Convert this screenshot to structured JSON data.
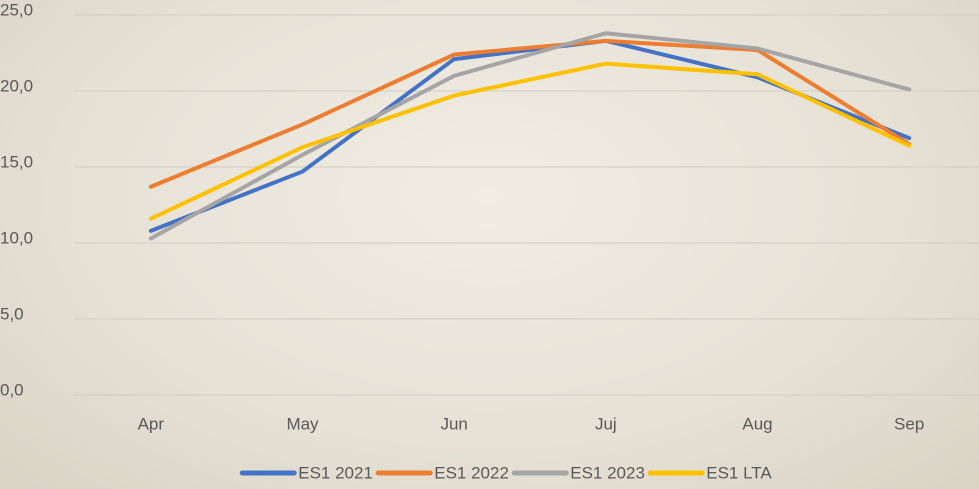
{
  "chart_data": {
    "type": "line",
    "categories": [
      "Apr",
      "May",
      "Jun",
      "Juj",
      "Aug",
      "Sep"
    ],
    "series": [
      {
        "name": "ES1 2021",
        "color": "#4472c4",
        "values": [
          10.8,
          14.7,
          22.1,
          23.3,
          20.9,
          16.9
        ]
      },
      {
        "name": "ES1 2022",
        "color": "#ed7d31",
        "values": [
          13.7,
          17.8,
          22.4,
          23.3,
          22.7,
          16.5
        ]
      },
      {
        "name": "ES1 2023",
        "color": "#a5a5a5",
        "values": [
          10.3,
          15.8,
          21.0,
          23.8,
          22.8,
          20.1
        ]
      },
      {
        "name": "ES1 LTA",
        "color": "#ffc000",
        "values": [
          11.6,
          16.3,
          19.7,
          21.8,
          21.1,
          16.4
        ]
      }
    ],
    "ylim": [
      0,
      25
    ],
    "yticks": [
      {
        "value": 0,
        "label": "0,0"
      },
      {
        "value": 5,
        "label": "5,0"
      },
      {
        "value": 10,
        "label": "10,0"
      },
      {
        "value": 15,
        "label": "15,0"
      },
      {
        "value": 20,
        "label": "20,0"
      },
      {
        "value": 25,
        "label": "25,0"
      }
    ],
    "grid": true,
    "legend": "bottom"
  }
}
